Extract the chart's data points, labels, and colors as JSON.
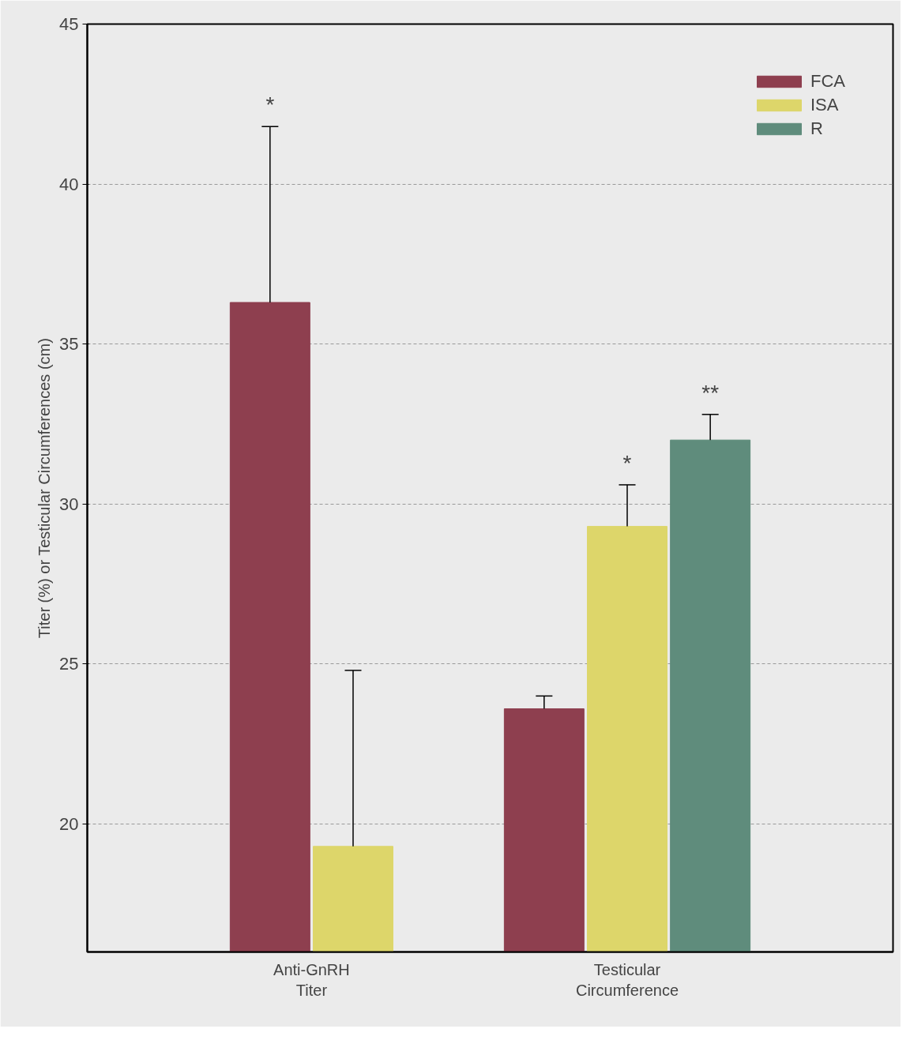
{
  "chart_data": {
    "type": "bar",
    "ylabel": "Titer (%) or Testicular Circumferences (cm)",
    "categories": [
      "Anti-GnRH\nTiter",
      "Testicular\nCircumference"
    ],
    "series": [
      {
        "name": "FCA",
        "color": "#8e3f4f",
        "values": [
          36.3,
          23.6
        ],
        "errors": [
          [
            36.3,
            41.8
          ],
          [
            23.6,
            24.0
          ]
        ]
      },
      {
        "name": "ISA",
        "color": "#ddd66a",
        "values": [
          19.3,
          29.3
        ],
        "errors": [
          [
            19.3,
            24.8
          ],
          [
            29.3,
            30.6
          ]
        ]
      },
      {
        "name": "R",
        "color": "#5f8c7c",
        "values": [
          null,
          32.0
        ],
        "errors": [
          null,
          [
            32.0,
            32.8
          ]
        ]
      }
    ],
    "annotations": [
      "*",
      "*",
      "**"
    ],
    "ylim": [
      16,
      45
    ],
    "yticks": [
      20,
      25,
      30,
      35,
      40,
      45
    ],
    "grid": "y",
    "legend": "top right"
  }
}
